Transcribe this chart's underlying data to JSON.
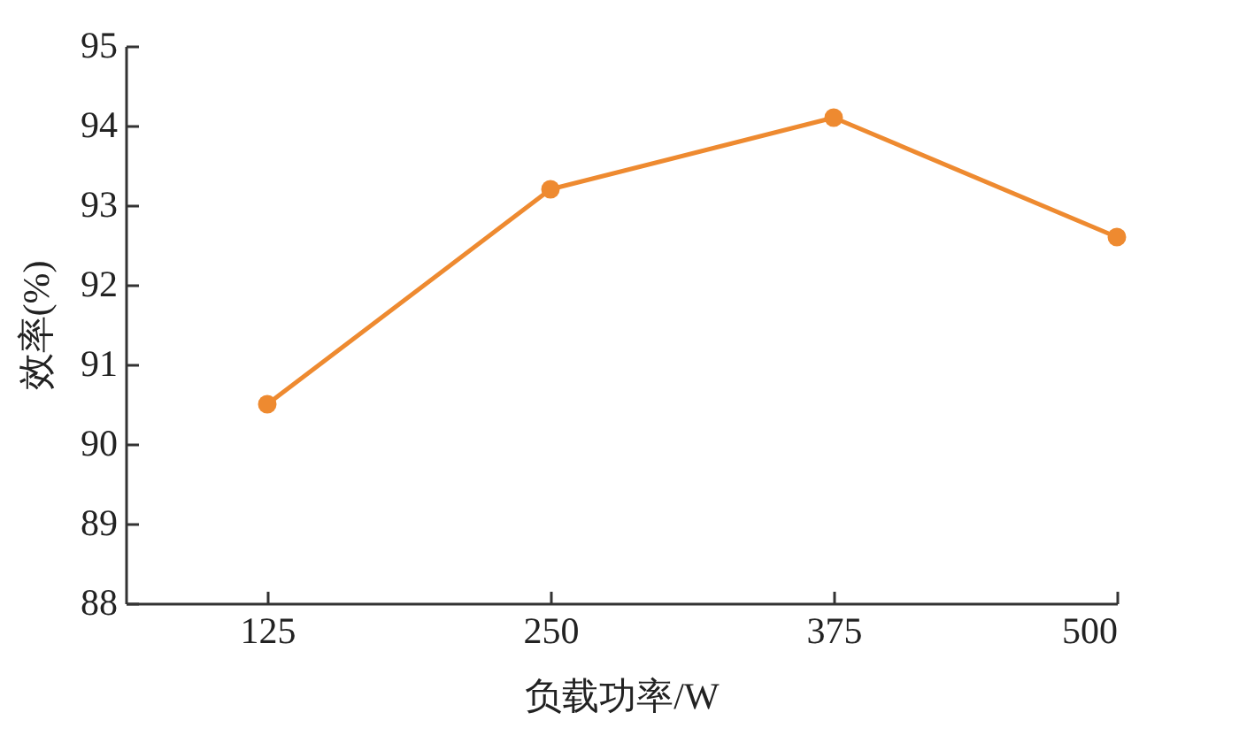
{
  "chart_data": {
    "type": "line",
    "xlabel": "负载功率/W",
    "ylabel": "效率(%)",
    "x": [
      125,
      250,
      375,
      500
    ],
    "series": [
      {
        "color": "#ee8a30",
        "values": [
          90.5,
          93.2,
          94.1,
          92.6
        ]
      }
    ],
    "xlim": [
      62.5,
      500
    ],
    "xticks": [
      125,
      250,
      375,
      500
    ],
    "ylim": [
      88,
      95
    ],
    "yticks": [
      88,
      89,
      90,
      91,
      92,
      93,
      94,
      95
    ],
    "marker": "circle",
    "line_style": "solid",
    "grid": false
  }
}
